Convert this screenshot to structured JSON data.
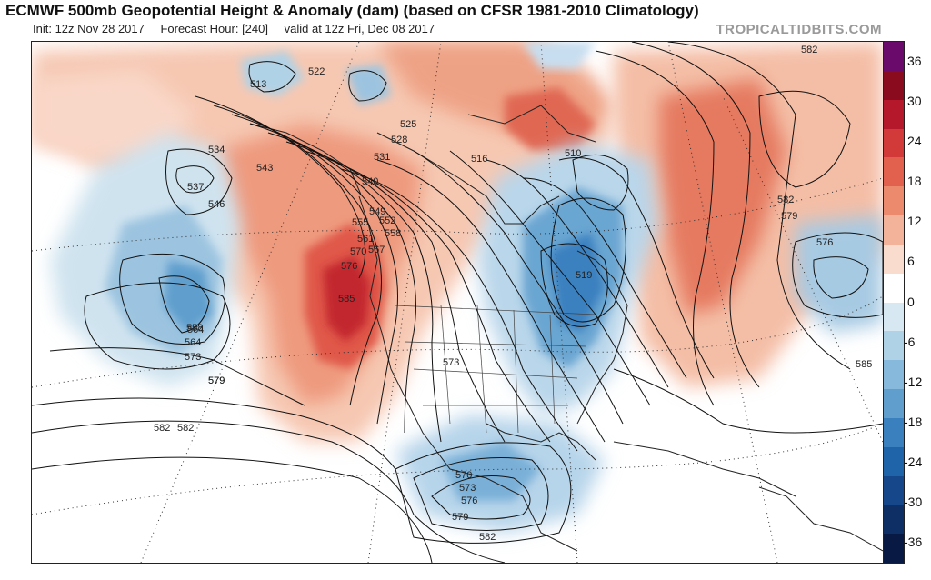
{
  "header": {
    "title": "ECMWF 500mb Geopotential Height & Anomaly (dam) (based on CFSR 1981-2010 Climatology)",
    "init": "Init: 12z Nov 28 2017",
    "forecast_hour": "Forecast Hour: [240]",
    "valid": "valid at 12z Fri, Dec 08 2017",
    "brand": "TROPICALTIDBITS.COM"
  },
  "colorbar": {
    "labels": [
      "36",
      "30",
      "24",
      "18",
      "12",
      "6",
      "0",
      "-6",
      "-12",
      "-18",
      "-24",
      "-30",
      "-36"
    ],
    "colors": [
      "#6a0a6a",
      "#8a0a1e",
      "#b5182a",
      "#d23a3a",
      "#e2604e",
      "#ec8a6e",
      "#f3b39a",
      "#f9dccd",
      "#ffffff",
      "#d7e8f2",
      "#b0d2e6",
      "#86b9db",
      "#5f9ecd",
      "#3a80bf",
      "#1f63a8",
      "#16478a",
      "#0e2e66",
      "#081a44"
    ]
  },
  "map": {
    "contour_labels": [
      "582",
      "513",
      "522",
      "534",
      "537",
      "546",
      "543",
      "540",
      "549",
      "552",
      "555",
      "558",
      "561",
      "564",
      "567",
      "570",
      "573",
      "576",
      "579",
      "585",
      "525",
      "528",
      "531",
      "516",
      "519",
      "510",
      "585",
      "582",
      "579",
      "576",
      "582",
      "570",
      "573",
      "576",
      "579",
      "582",
      "558",
      "564",
      "573",
      "579",
      "582"
    ],
    "anomaly_features": [
      {
        "name": "west-coast-ridge",
        "sign": "positive"
      },
      {
        "name": "eastern-us-trough",
        "sign": "negative"
      },
      {
        "name": "gulf-of-alaska-low",
        "sign": "negative"
      },
      {
        "name": "mexico-cutoff-low",
        "sign": "negative"
      },
      {
        "name": "atlantic-ridge",
        "sign": "positive"
      },
      {
        "name": "atlantic-low",
        "sign": "negative"
      },
      {
        "name": "arctic-low",
        "sign": "negative"
      }
    ]
  }
}
